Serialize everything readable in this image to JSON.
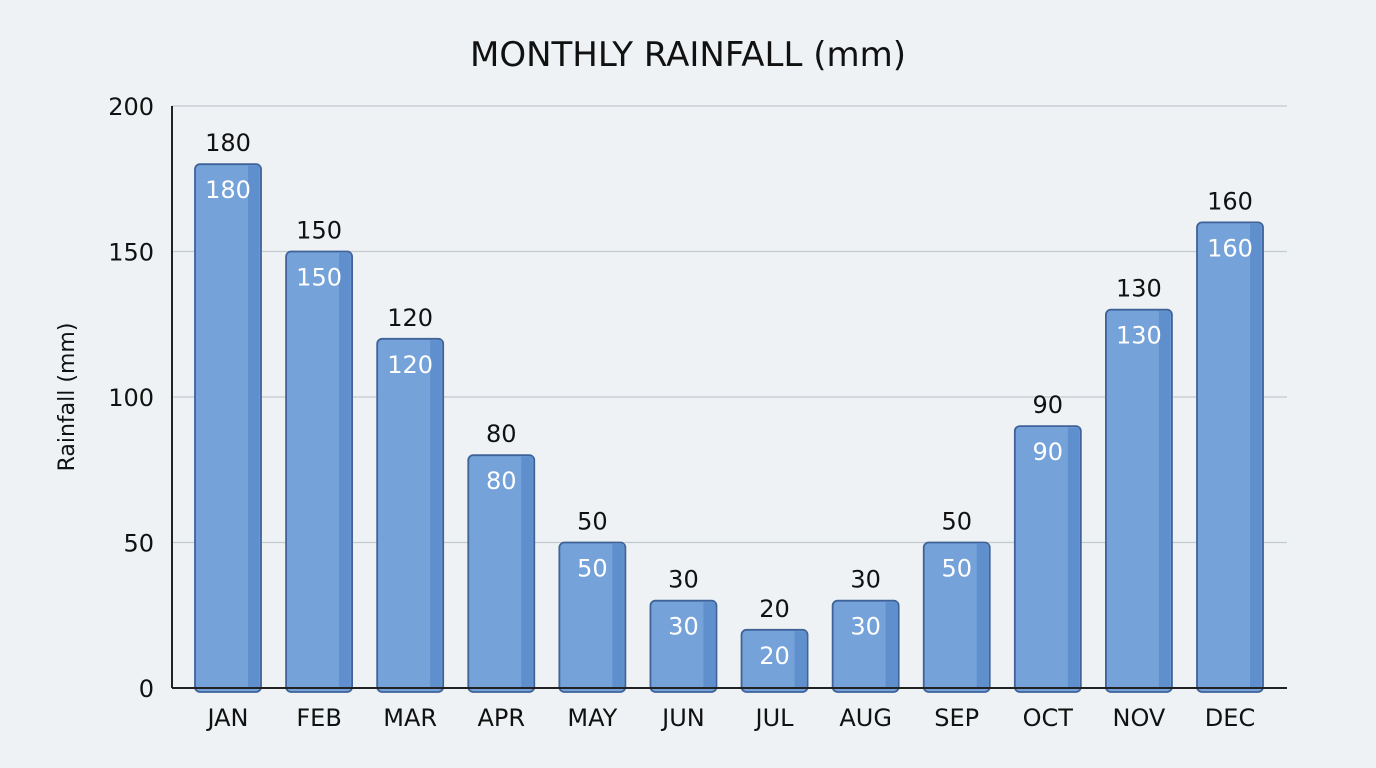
{
  "chart_data": {
    "type": "bar",
    "title": "MONTHLY RAINFALL (mm)",
    "xlabel": "",
    "ylabel": "Rainfall (mm)",
    "ylim": [
      0,
      200
    ],
    "yticks": [
      0,
      50,
      100,
      150,
      200
    ],
    "grid": true,
    "categories": [
      "JAN",
      "FEB",
      "MAR",
      "APR",
      "MAY",
      "JUN",
      "JUL",
      "AUG",
      "SEP",
      "OCT",
      "NOV",
      "DEC"
    ],
    "values": [
      180,
      150,
      120,
      80,
      50,
      30,
      20,
      30,
      50,
      90,
      130,
      160
    ],
    "colors": {
      "bar": "#74a2d9",
      "bar_shade": "#5f8fcc",
      "bar_border": "#3f6399",
      "grid": "#c4c9cd",
      "axis": "#222222"
    }
  }
}
